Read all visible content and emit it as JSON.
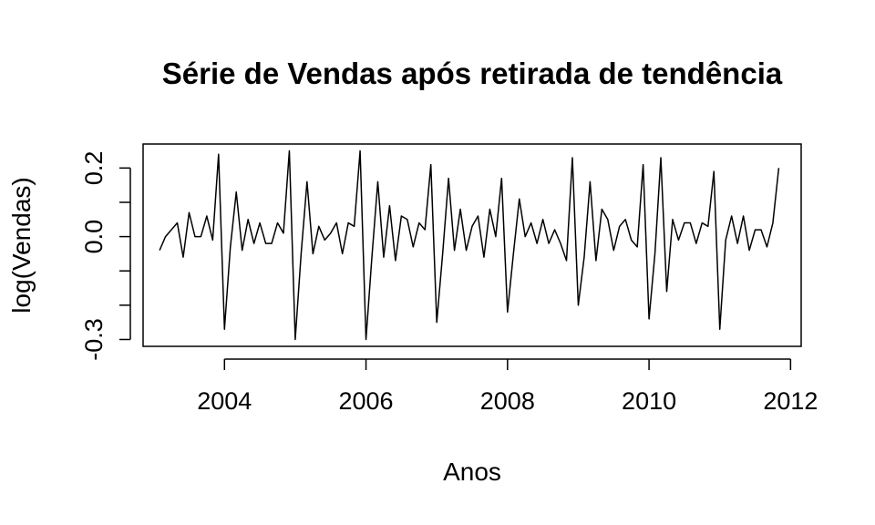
{
  "chart_data": {
    "type": "line",
    "title": "Série de Vendas após retirada de tendência",
    "xlabel": "Anos",
    "ylabel": "log(Vendas)",
    "xlim": [
      2002.85,
      2012.15
    ],
    "ylim": [
      -0.32,
      0.27
    ],
    "x_ticks": [
      2004,
      2006,
      2008,
      2010,
      2012
    ],
    "x_tick_labels": [
      "2004",
      "2006",
      "2008",
      "2010",
      "2012"
    ],
    "y_ticks": [
      -0.3,
      -0.2,
      -0.1,
      0.0,
      0.1,
      0.2
    ],
    "y_tick_labels": [
      "-0.3",
      "",
      "",
      "0.0",
      "",
      "0.2"
    ],
    "grid": false,
    "series": [
      {
        "x_start": 2003.0833,
        "x_step": 0.0833333,
        "values": [
          -0.04,
          0.0,
          0.02,
          0.04,
          -0.06,
          0.07,
          0.0,
          0.0,
          0.06,
          -0.01,
          0.24,
          -0.27,
          -0.03,
          0.13,
          -0.04,
          0.05,
          -0.02,
          0.04,
          -0.02,
          -0.02,
          0.04,
          0.01,
          0.25,
          -0.3,
          -0.05,
          0.16,
          -0.05,
          0.03,
          -0.01,
          0.01,
          0.04,
          -0.05,
          0.04,
          0.03,
          0.25,
          -0.3,
          -0.06,
          0.16,
          -0.06,
          0.09,
          -0.07,
          0.06,
          0.05,
          -0.03,
          0.04,
          0.02,
          0.21,
          -0.25,
          -0.05,
          0.17,
          -0.04,
          0.08,
          -0.04,
          0.03,
          0.06,
          -0.06,
          0.08,
          0.0,
          0.17,
          -0.22,
          -0.05,
          0.11,
          0.0,
          0.04,
          -0.02,
          0.05,
          -0.02,
          0.02,
          -0.02,
          -0.07,
          0.23,
          -0.2,
          -0.06,
          0.16,
          -0.07,
          0.08,
          0.05,
          -0.04,
          0.03,
          0.05,
          -0.01,
          -0.03,
          0.21,
          -0.24,
          -0.05,
          0.23,
          -0.16,
          0.05,
          -0.01,
          0.04,
          0.04,
          -0.02,
          0.04,
          0.03,
          0.19,
          -0.27,
          -0.01,
          0.06,
          -0.02,
          0.06,
          -0.04,
          0.02,
          0.02,
          -0.03,
          0.04,
          0.2
        ]
      }
    ]
  }
}
